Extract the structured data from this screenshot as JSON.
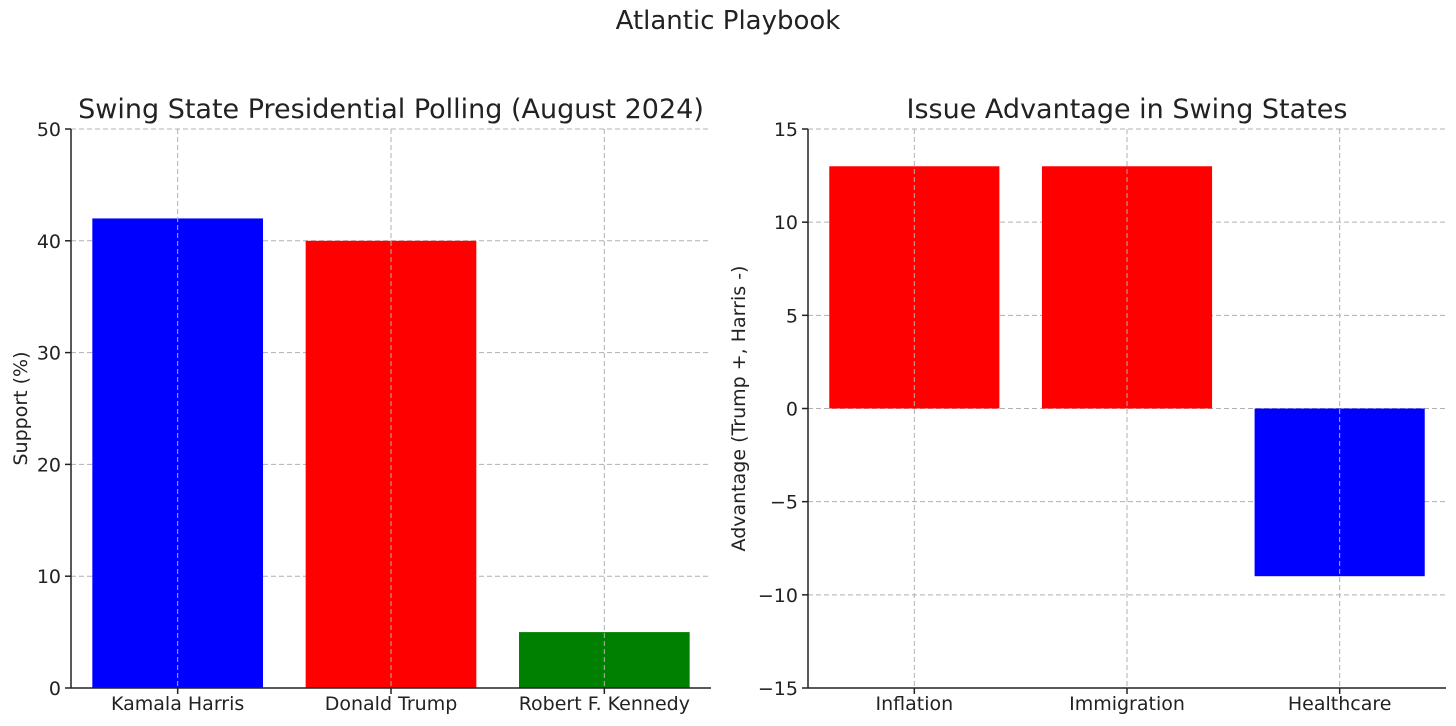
{
  "figure": {
    "suptitle": "Atlantic Playbook"
  },
  "chart_data": [
    {
      "type": "bar",
      "title": "Swing State Presidential Polling (August 2024)",
      "xlabel": "",
      "ylabel": "Support (%)",
      "categories": [
        "Kamala Harris",
        "Donald Trump",
        "Robert F. Kennedy"
      ],
      "values": [
        42,
        40,
        5
      ],
      "colors": [
        "#0000ff",
        "#ff0000",
        "#008000"
      ],
      "ylim": [
        0,
        50
      ],
      "yticks": [
        0,
        10,
        20,
        30,
        40,
        50
      ],
      "ytick_labels": [
        "0",
        "10",
        "20",
        "30",
        "40",
        "50"
      ],
      "grid": true
    },
    {
      "type": "bar",
      "title": "Issue Advantage in Swing States",
      "xlabel": "",
      "ylabel": "Advantage (Trump +, Harris -)",
      "categories": [
        "Inflation",
        "Immigration",
        "Healthcare"
      ],
      "values": [
        13,
        13,
        -9
      ],
      "colors": [
        "#ff0000",
        "#ff0000",
        "#0000ff"
      ],
      "ylim": [
        -15,
        15
      ],
      "yticks": [
        -15,
        -10,
        -5,
        0,
        5,
        10,
        15
      ],
      "ytick_labels": [
        "−15",
        "−10",
        "−5",
        "0",
        "5",
        "10",
        "15"
      ],
      "grid": true
    }
  ]
}
